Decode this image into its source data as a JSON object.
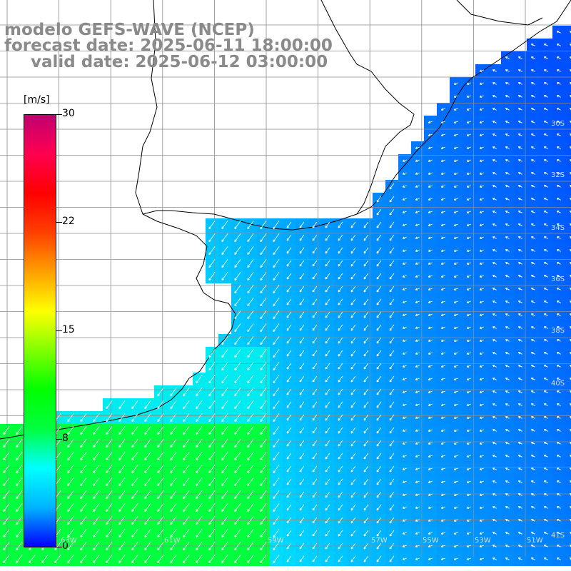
{
  "title": {
    "line1": "modelo GEFS-WAVE (NCEP)",
    "line2": "forecast date: 2025-06-11 18:00:00",
    "line3": "valid date: 2025-06-12 03:00:00"
  },
  "colorbar": {
    "unit": "[m/s]",
    "ticks": [
      "30",
      "22",
      "15",
      "8",
      "0"
    ],
    "tick_values": [
      30,
      22,
      15,
      8,
      0
    ],
    "colors": [
      "#0000ff",
      "#00b4ff",
      "#00ffff",
      "#00ff40",
      "#00ff00",
      "#80ff00",
      "#ffff00",
      "#ffa000",
      "#ff4000",
      "#ff0000",
      "#ff0050",
      "#c00070"
    ]
  },
  "lat_labels": [
    "30S",
    "32S",
    "34S",
    "36S",
    "38S",
    "40S",
    "41S"
  ],
  "lon_labels": [
    "63W",
    "61W",
    "59W",
    "57W",
    "55W",
    "53W",
    "51W"
  ],
  "colors": {
    "land": "#ffffff",
    "grid": "#8c8c8c",
    "coast": "#000000",
    "arrow": "#ffffff"
  }
}
